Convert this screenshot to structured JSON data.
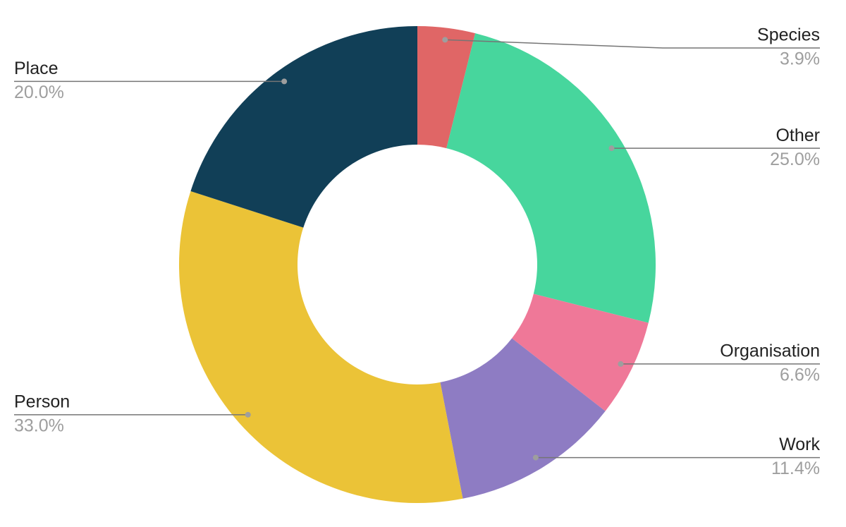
{
  "chart_data": {
    "type": "donut",
    "categories": [
      "Species",
      "Other",
      "Organisation",
      "Work",
      "Person",
      "Place"
    ],
    "values": [
      3.9,
      25.0,
      6.6,
      11.4,
      33.0,
      20.0
    ],
    "value_labels": [
      "3.9%",
      "25.0%",
      "6.6%",
      "11.4%",
      "33.0%",
      "20.0%"
    ],
    "colors": [
      "#e06666",
      "#47d69d",
      "#ef7898",
      "#8e7cc3",
      "#ebc337",
      "#113f57"
    ]
  }
}
